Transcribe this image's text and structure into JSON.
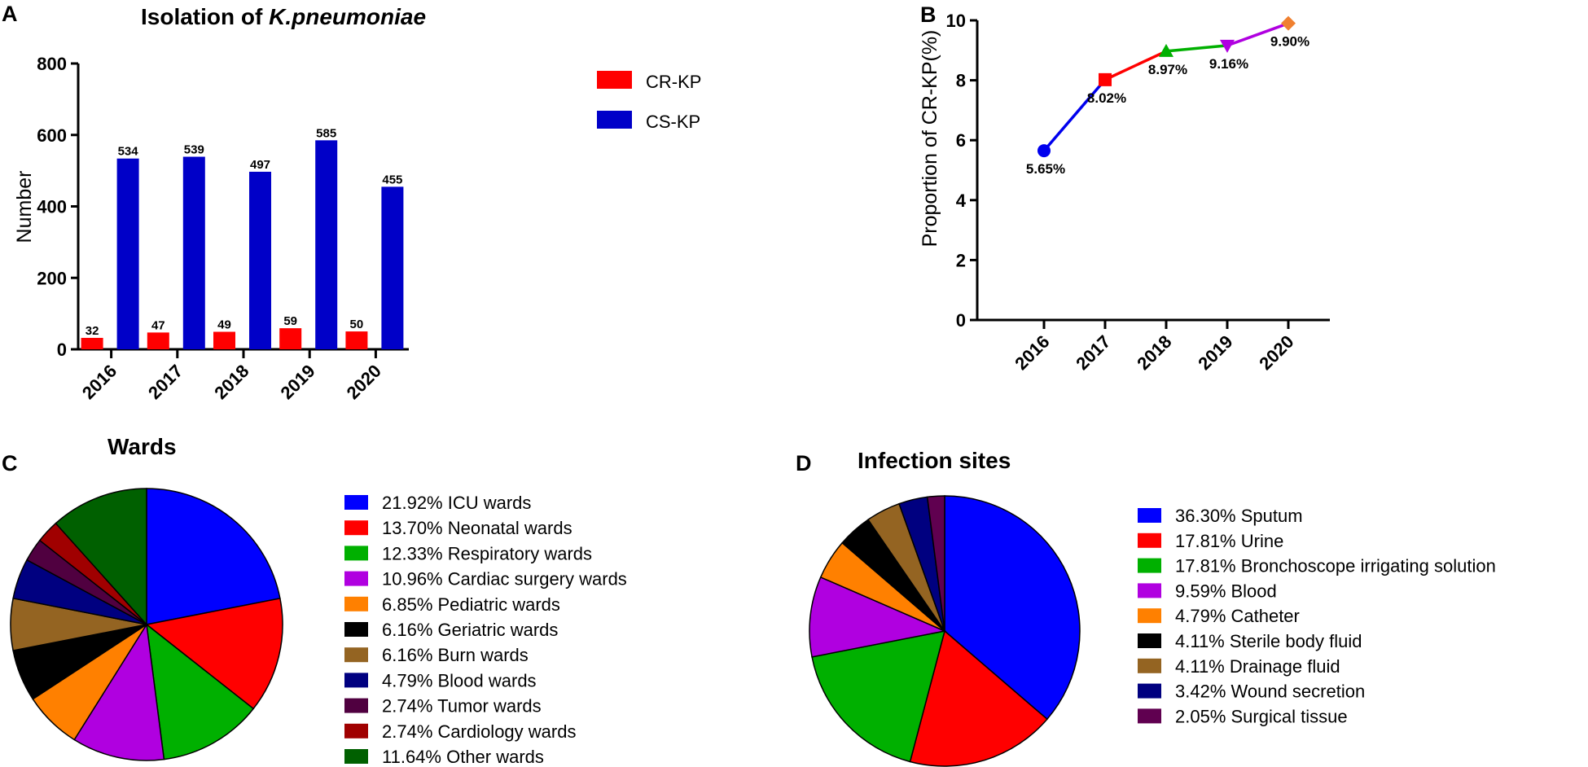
{
  "panels": {
    "A": "A",
    "B": "B",
    "C": "C",
    "D": "D"
  },
  "chart_data": [
    {
      "type": "bar",
      "title_prefix": "Isolation of ",
      "title_italic": "K.pneumoniae",
      "categories": [
        "2016",
        "2017",
        "2018",
        "2019",
        "2020"
      ],
      "series": [
        {
          "name": "CR-KP",
          "color": "#ff0000",
          "values": [
            32,
            47,
            49,
            59,
            50
          ]
        },
        {
          "name": "CS-KP",
          "color": "#0000c8",
          "values": [
            534,
            539,
            497,
            585,
            455
          ]
        }
      ],
      "ylabel": "Number",
      "ylim": [
        0,
        800
      ],
      "yticks": [
        0,
        200,
        400,
        600,
        800
      ],
      "legend": "right"
    },
    {
      "type": "line",
      "categories": [
        "2016",
        "2017",
        "2018",
        "2019",
        "2020"
      ],
      "values": [
        5.65,
        8.02,
        8.97,
        9.16,
        9.9
      ],
      "point_labels": [
        "5.65%",
        "8.02%",
        "8.97%",
        "9.16%",
        "9.90%"
      ],
      "segment_colors": [
        "#0000ee",
        "#ff0000",
        "#00b000",
        "#b000e0"
      ],
      "marker_colors": [
        "#0000ee",
        "#ff0000",
        "#00b000",
        "#b000e0",
        "#f08030"
      ],
      "markers": [
        "circle",
        "square",
        "triangle-up",
        "triangle-down",
        "diamond"
      ],
      "ylabel": "Proportion of CR-KP(%)",
      "ylim": [
        0,
        10
      ],
      "yticks": [
        0,
        2,
        4,
        6,
        8,
        10
      ]
    },
    {
      "type": "pie",
      "title": "Wards",
      "slices": [
        {
          "label": "21.92%  ICU wards",
          "value": 21.92,
          "color": "#0000ff"
        },
        {
          "label": "13.70%  Neonatal wards",
          "value": 13.7,
          "color": "#ff0000"
        },
        {
          "label": "12.33%  Respiratory wards",
          "value": 12.33,
          "color": "#00b000"
        },
        {
          "label": "10.96%  Cardiac surgery wards",
          "value": 10.96,
          "color": "#b000e0"
        },
        {
          "label": "6.85%  Pediatric wards",
          "value": 6.85,
          "color": "#ff8000"
        },
        {
          "label": "6.16%  Geriatric wards",
          "value": 6.16,
          "color": "#000000"
        },
        {
          "label": "6.16%  Burn wards",
          "value": 6.16,
          "color": "#946422"
        },
        {
          "label": "4.79%  Blood wards",
          "value": 4.79,
          "color": "#000080"
        },
        {
          "label": "2.74%  Tumor wards",
          "value": 2.74,
          "color": "#500040"
        },
        {
          "label": "2.74%  Cardiology wards",
          "value": 2.74,
          "color": "#a00000"
        },
        {
          "label": "11.64%  Other wards",
          "value": 11.64,
          "color": "#006000"
        }
      ]
    },
    {
      "type": "pie",
      "title": "Infection sites",
      "slices": [
        {
          "label": "36.30%  Sputum",
          "value": 36.3,
          "color": "#0000ff"
        },
        {
          "label": "17.81%  Urine",
          "value": 17.81,
          "color": "#ff0000"
        },
        {
          "label": "17.81%  Bronchoscope irrigating solution",
          "value": 17.81,
          "color": "#00b000"
        },
        {
          "label": "9.59%  Blood",
          "value": 9.59,
          "color": "#b000e0"
        },
        {
          "label": "4.79%  Catheter",
          "value": 4.79,
          "color": "#ff8000"
        },
        {
          "label": "4.11%  Sterile body fluid",
          "value": 4.11,
          "color": "#000000"
        },
        {
          "label": "4.11%  Drainage fluid",
          "value": 4.11,
          "color": "#946422"
        },
        {
          "label": "3.42%  Wound secretion",
          "value": 3.42,
          "color": "#000080"
        },
        {
          "label": "2.05%  Surgical tissue",
          "value": 2.05,
          "color": "#600050"
        }
      ]
    }
  ]
}
